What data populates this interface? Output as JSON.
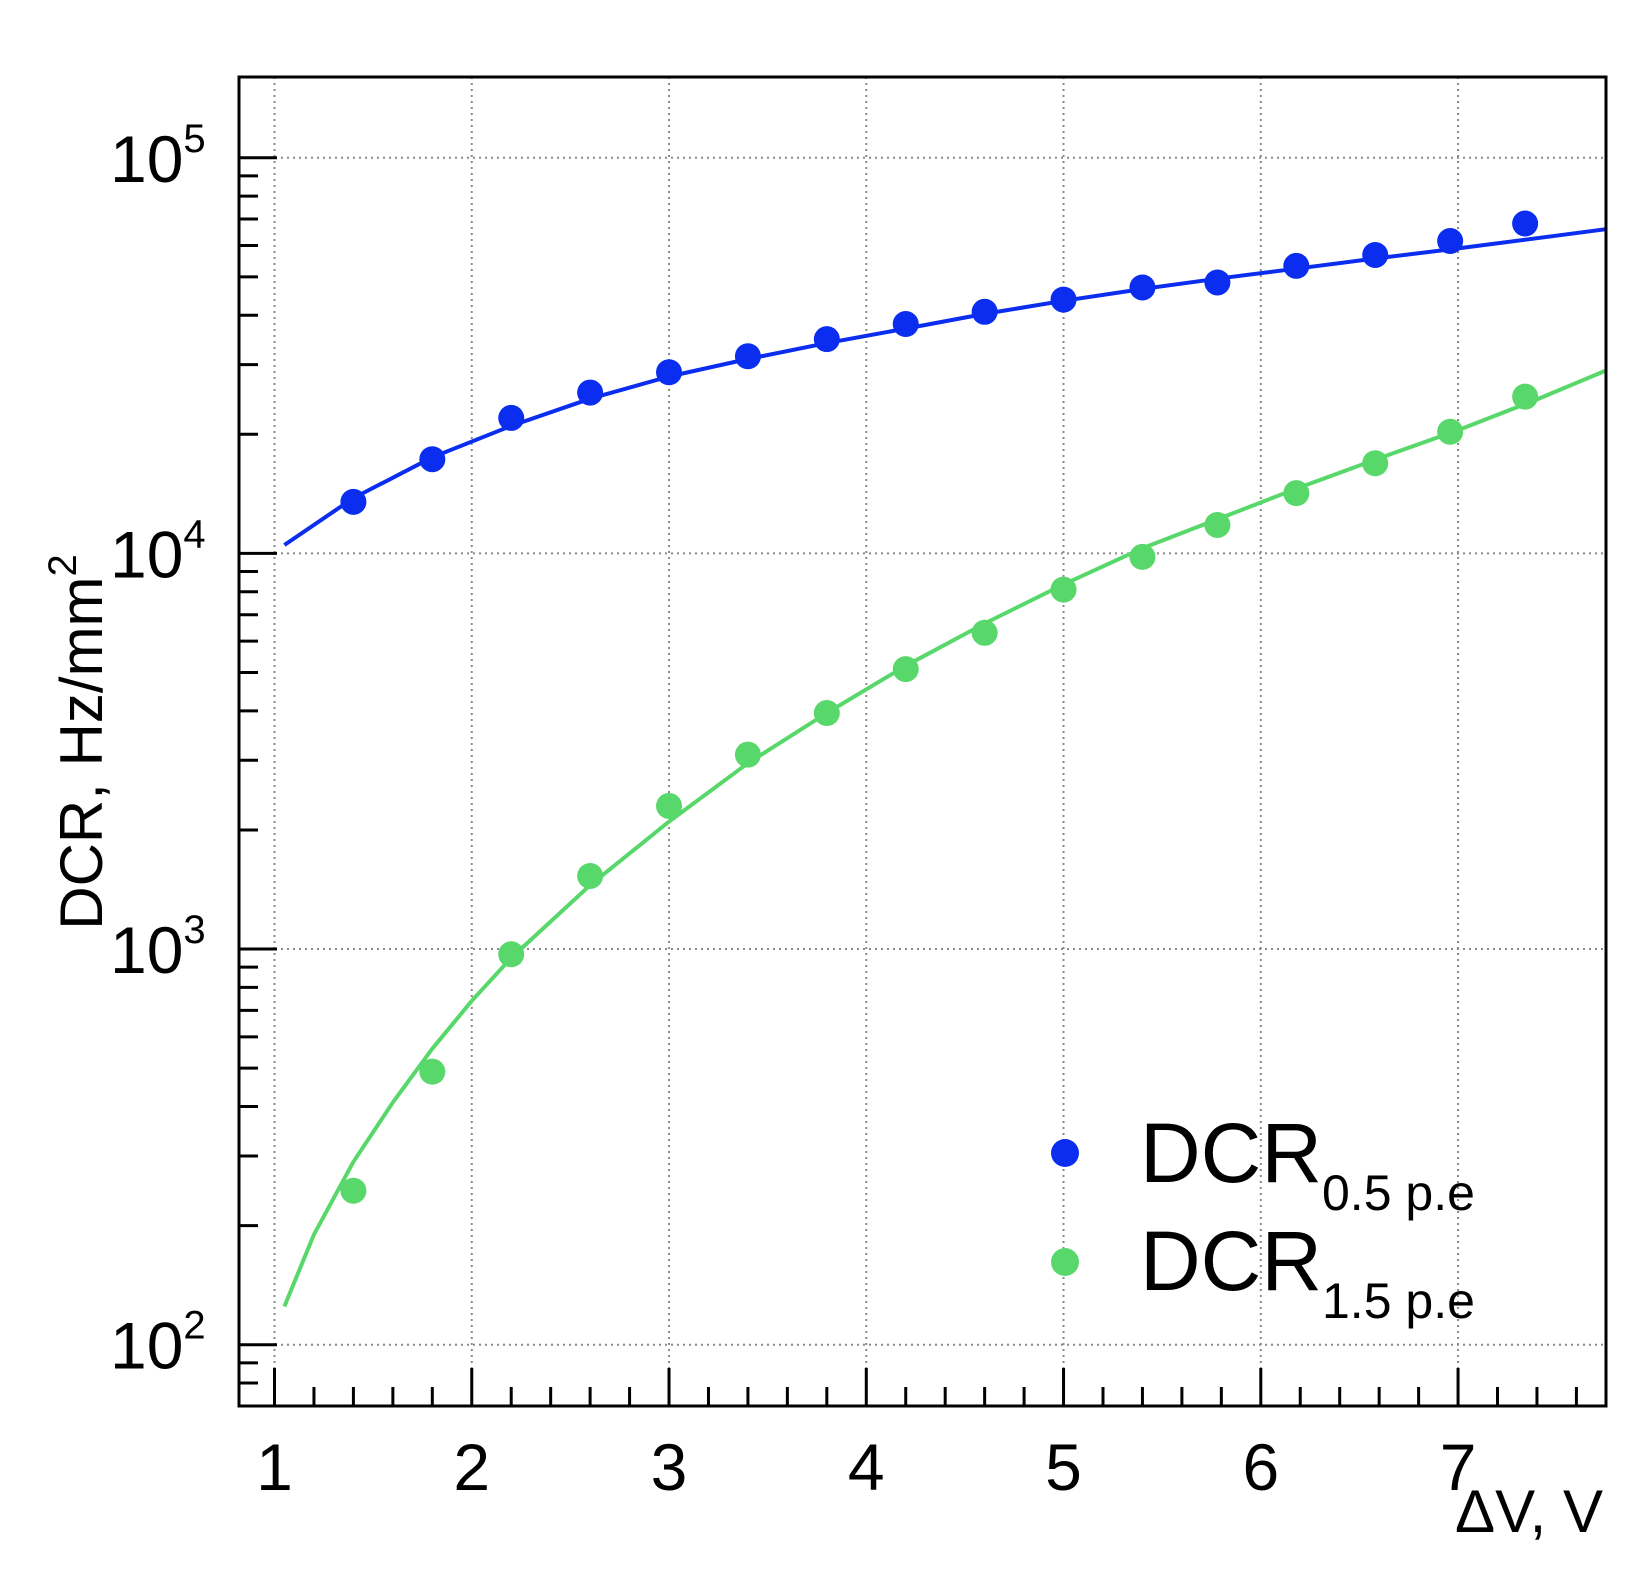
{
  "chart_data": {
    "type": "scatter",
    "title": "",
    "xlabel": "ΔV, V",
    "ylabel": "DCR, Hz/mm",
    "ylabel_superscript": "2",
    "x_range": [
      0.82,
      7.75
    ],
    "y_range": [
      70,
      160000
    ],
    "y_scale": "log",
    "grid": true,
    "x_ticks": [
      "1",
      "2",
      "3",
      "4",
      "5",
      "6",
      "7"
    ],
    "y_ticks": [
      {
        "value": 100,
        "base": "10",
        "exponent": "2"
      },
      {
        "value": 1000,
        "base": "10",
        "exponent": "3"
      },
      {
        "value": 10000,
        "base": "10",
        "exponent": "4"
      },
      {
        "value": 100000,
        "base": "10",
        "exponent": "5"
      }
    ],
    "legend_position": "bottom-right",
    "series": [
      {
        "name": "DCR",
        "subscript": "0.5 p.e",
        "color": "#0a2df0",
        "x": [
          1.4,
          1.8,
          2.2,
          2.6,
          3.0,
          3.4,
          3.8,
          4.2,
          4.6,
          5.0,
          5.4,
          5.78,
          6.18,
          6.58,
          6.96,
          7.34
        ],
        "y": [
          13500,
          17300,
          22000,
          25500,
          28700,
          31500,
          34800,
          38000,
          40800,
          43800,
          47000,
          48400,
          53300,
          56800,
          61600,
          68200
        ],
        "fit": {
          "x": [
            1.05,
            1.4,
            1.8,
            2.2,
            2.6,
            3.0,
            3.4,
            3.8,
            4.2,
            4.6,
            5.0,
            5.4,
            5.8,
            6.2,
            6.6,
            7.0,
            7.4,
            7.75
          ],
          "y": [
            10500,
            13800,
            17500,
            21000,
            24600,
            28000,
            31000,
            34000,
            37000,
            40300,
            43500,
            46600,
            49600,
            52600,
            55800,
            59000,
            62600,
            66000
          ]
        }
      },
      {
        "name": "DCR",
        "subscript": "1.5 p.e",
        "color": "#58d86a",
        "x": [
          1.4,
          1.8,
          2.2,
          2.6,
          3.0,
          3.4,
          3.8,
          4.2,
          4.6,
          5.0,
          5.4,
          5.78,
          6.18,
          6.58,
          6.96,
          7.34
        ],
        "y": [
          245,
          490,
          970,
          1530,
          2300,
          3100,
          3950,
          5100,
          6300,
          8100,
          9800,
          11800,
          14200,
          16900,
          20300,
          24900
        ],
        "fit": {
          "x": [
            1.05,
            1.2,
            1.4,
            1.6,
            1.8,
            2.0,
            2.2,
            2.6,
            3.0,
            3.4,
            3.8,
            4.2,
            4.6,
            5.0,
            5.4,
            5.8,
            6.2,
            6.6,
            7.0,
            7.4,
            7.75
          ],
          "y": [
            125,
            190,
            290,
            410,
            560,
            740,
            950,
            1450,
            2100,
            2950,
            3950,
            5200,
            6650,
            8350,
            10300,
            12300,
            14700,
            17400,
            20500,
            24500,
            29000
          ]
        }
      }
    ]
  }
}
